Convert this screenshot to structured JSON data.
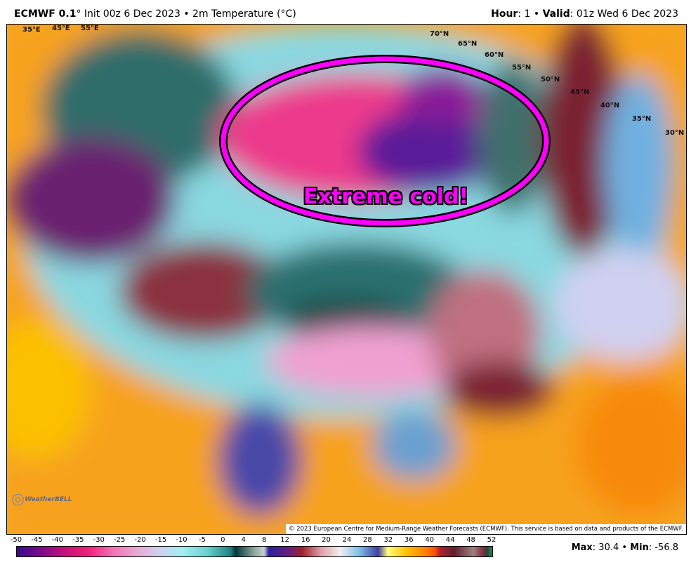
{
  "header": {
    "model": "ECMWF 0.1",
    "init": "° Init 00z 6 Dec 2023 • 2m Temperature (°C)",
    "hour_label": "Hour",
    "hour_value": ": 1 • ",
    "valid_label": "Valid",
    "valid_value": ": 01z Wed 6 Dec 2023"
  },
  "map": {
    "annotation": "Extreme cold!",
    "annotation_color": "#ff00ff",
    "lat_labels": [
      "70°N",
      "65°N",
      "60°N",
      "55°N",
      "50°N",
      "45°N",
      "40°N",
      "35°N",
      "30°N"
    ],
    "lon_labels": [
      "35°E",
      "45°E",
      "55°E"
    ],
    "copyright": "© 2023 European Centre for Medium-Range Weather Forecasts (ECMWF). This service is based on data and products of the ECMWF.",
    "logo": "WeatherBELL"
  },
  "colorbar": {
    "ticks": [
      "-50",
      "-45",
      "-40",
      "-35",
      "-30",
      "-25",
      "-20",
      "-15",
      "-10",
      "-5",
      "0",
      "4",
      "8",
      "12",
      "16",
      "20",
      "24",
      "28",
      "32",
      "36",
      "40",
      "44",
      "48",
      "52"
    ],
    "unit": "°C"
  },
  "stats": {
    "max_label": "Max",
    "max_value": ": 30.4 • ",
    "min_label": "Min",
    "min_value": ": -56.8"
  }
}
